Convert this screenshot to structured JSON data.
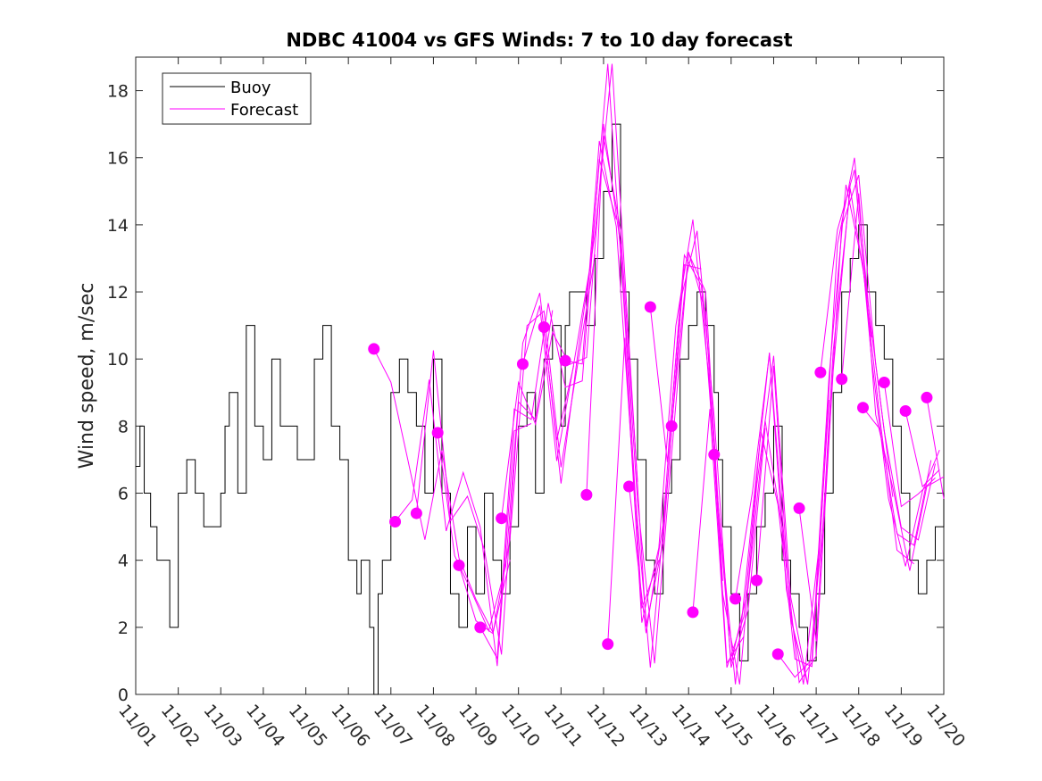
{
  "chart_data": {
    "type": "line",
    "title": "NDBC 41004 vs GFS Winds: 7 to 10 day forecast",
    "xlabel": "",
    "ylabel": "Wind speed, m/sec",
    "xlim": [
      0,
      19
    ],
    "ylim": [
      0,
      19
    ],
    "x_tick_labels": [
      "11/01",
      "11/02",
      "11/03",
      "11/04",
      "11/05",
      "11/06",
      "11/07",
      "11/08",
      "11/09",
      "11/10",
      "11/11",
      "11/12",
      "11/13",
      "11/14",
      "11/15",
      "11/16",
      "11/17",
      "11/18",
      "11/19",
      "11/20"
    ],
    "y_ticks": [
      0,
      2,
      4,
      6,
      8,
      10,
      12,
      14,
      16,
      18
    ],
    "legend": {
      "position": "top-left",
      "entries": [
        "Buoy",
        "Forecast"
      ]
    },
    "colors": {
      "buoy": "#000000",
      "forecast": "#ff00ff"
    },
    "series": [
      {
        "name": "Buoy",
        "x": [
          0,
          0.1,
          0.2,
          0.35,
          0.5,
          0.6,
          0.8,
          1.0,
          1.2,
          1.4,
          1.6,
          1.8,
          2.0,
          2.1,
          2.2,
          2.4,
          2.6,
          2.8,
          3.0,
          3.2,
          3.4,
          3.6,
          3.8,
          4.0,
          4.2,
          4.4,
          4.6,
          4.8,
          5.0,
          5.2,
          5.3,
          5.5,
          5.6,
          5.7,
          5.8,
          6.0,
          6.2,
          6.4,
          6.6,
          6.8,
          7.0,
          7.2,
          7.4,
          7.6,
          7.8,
          8.0,
          8.2,
          8.4,
          8.6,
          8.8,
          9.0,
          9.2,
          9.4,
          9.6,
          9.8,
          10.0,
          10.1,
          10.2,
          10.4,
          10.6,
          10.8,
          11.0,
          11.2,
          11.4,
          11.6,
          11.8,
          12.0,
          12.2,
          12.4,
          12.6,
          12.8,
          13.0,
          13.2,
          13.4,
          13.6,
          13.7,
          13.8,
          14.0,
          14.2,
          14.4,
          14.6,
          14.8,
          15.0,
          15.2,
          15.4,
          15.6,
          15.8,
          16.0,
          16.2,
          16.4,
          16.6,
          16.8,
          17.0,
          17.2,
          17.4,
          17.6,
          17.8,
          18.0,
          18.2,
          18.4,
          18.6,
          18.8,
          19.0
        ],
        "y": [
          6.8,
          8,
          6,
          5,
          4,
          4,
          2,
          6,
          7,
          6,
          5,
          5,
          6,
          8,
          9,
          6,
          11,
          8,
          7,
          10,
          8,
          8,
          7,
          7,
          10,
          11,
          8,
          7,
          4,
          3,
          4,
          2,
          0,
          3,
          4,
          9,
          10,
          9,
          8,
          6,
          10,
          6,
          3,
          2,
          5,
          3,
          6,
          4,
          3,
          5,
          8,
          9,
          6,
          10,
          11,
          8,
          11,
          12,
          12,
          11,
          13,
          15,
          17,
          12,
          10,
          7,
          4,
          3,
          6,
          7,
          10,
          11,
          12,
          11,
          9,
          7,
          5,
          3,
          1,
          3,
          5,
          6,
          8,
          4,
          3,
          2,
          1,
          3,
          6,
          9,
          12,
          13,
          14,
          12,
          11,
          10,
          8,
          6,
          4,
          3,
          4,
          5,
          6
        ]
      }
    ],
    "forecast_points": {
      "x": [
        5.6,
        6.1,
        6.6,
        7.1,
        7.6,
        8.1,
        8.6,
        9.1,
        9.6,
        10.1,
        10.6,
        11.1,
        11.6,
        12.1,
        12.6,
        13.1,
        13.6,
        14.1,
        14.6,
        15.1,
        15.6,
        16.1,
        16.6,
        17.1,
        17.6,
        18.1,
        18.6
      ],
      "y": [
        10.3,
        5.15,
        5.4,
        7.8,
        3.85,
        2.0,
        5.25,
        9.85,
        10.95,
        9.95,
        5.95,
        1.5,
        6.2,
        11.55,
        8.0,
        2.45,
        7.15,
        2.85,
        3.4,
        1.2,
        5.55,
        9.6,
        9.4,
        8.55,
        9.3,
        8.45,
        8.85
      ]
    }
  }
}
